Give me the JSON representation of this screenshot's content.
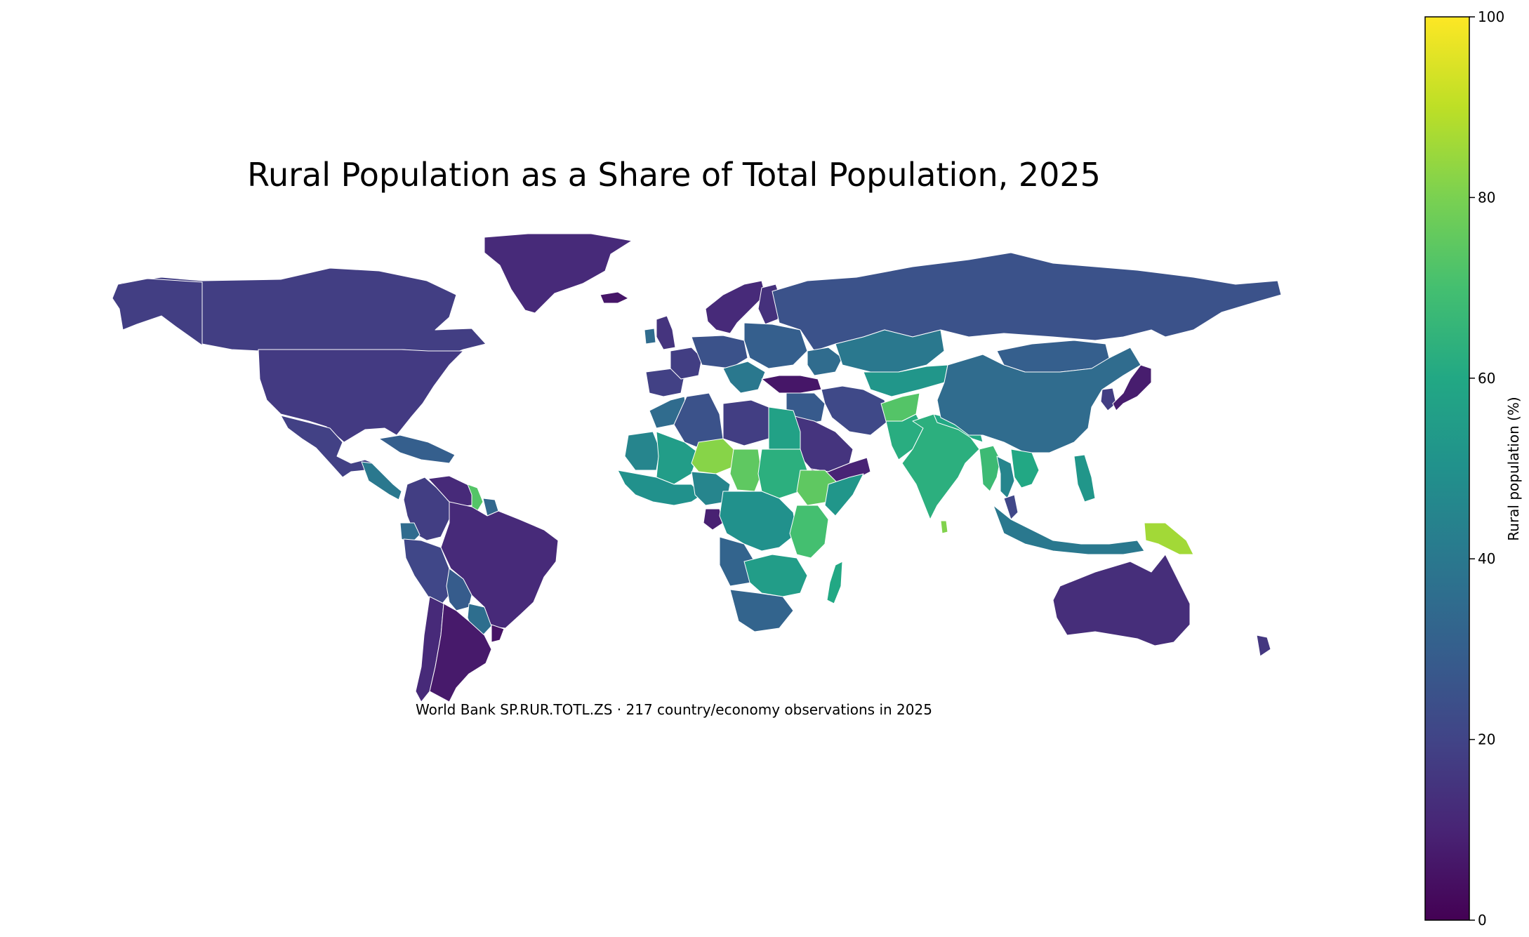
{
  "map": {
    "title": "Rural Population as a Share of Total Population, 2025",
    "subtitle": "World Bank SP.RUR.TOTL.ZS · 217 country/economy observations in 2025",
    "projection": "equirectangular world map",
    "colormap": "viridis",
    "colors": {
      "low": "#440154",
      "mid": "#21918c",
      "high": "#fde725",
      "background": "#ffffff",
      "border": "#ffffff"
    }
  },
  "colorbar": {
    "label": "Rural population (%)",
    "min": 0,
    "max": 100,
    "ticks": [
      "0",
      "20",
      "40",
      "60",
      "80",
      "100"
    ],
    "orientation": "vertical",
    "placement": "right"
  },
  "regions": [
    {
      "name": "Greenland",
      "value": 12
    },
    {
      "name": "Canada",
      "value": 18
    },
    {
      "name": "Alaska",
      "value": 18
    },
    {
      "name": "United States",
      "value": 17
    },
    {
      "name": "Mexico",
      "value": 19
    },
    {
      "name": "Central America",
      "value": 40
    },
    {
      "name": "Caribbean",
      "value": 30
    },
    {
      "name": "Colombia",
      "value": 18
    },
    {
      "name": "Venezuela",
      "value": 12
    },
    {
      "name": "Guyana",
      "value": 73
    },
    {
      "name": "Suriname",
      "value": 33
    },
    {
      "name": "Ecuador",
      "value": 35
    },
    {
      "name": "Peru",
      "value": 21
    },
    {
      "name": "Brazil",
      "value": 12
    },
    {
      "name": "Bolivia",
      "value": 29
    },
    {
      "name": "Paraguay",
      "value": 36
    },
    {
      "name": "Chile",
      "value": 12
    },
    {
      "name": "Argentina",
      "value": 7
    },
    {
      "name": "Uruguay",
      "value": 5
    },
    {
      "name": "Iceland",
      "value": 6
    },
    {
      "name": "United Kingdom",
      "value": 15
    },
    {
      "name": "Ireland",
      "value": 35
    },
    {
      "name": "Iberia",
      "value": 19
    },
    {
      "name": "France",
      "value": 18
    },
    {
      "name": "Central Europe",
      "value": 25
    },
    {
      "name": "Balkans",
      "value": 40
    },
    {
      "name": "Scandinavia",
      "value": 12
    },
    {
      "name": "Finland",
      "value": 14
    },
    {
      "name": "Eastern Europe",
      "value": 30
    },
    {
      "name": "Russia",
      "value": 25
    },
    {
      "name": "Turkey",
      "value": 6
    },
    {
      "name": "Caucasus",
      "value": 35
    },
    {
      "name": "Kazakhstan",
      "value": 40
    },
    {
      "name": "Central Asia",
      "value": 52
    },
    {
      "name": "Iran",
      "value": 22
    },
    {
      "name": "Iraq and Syria",
      "value": 28
    },
    {
      "name": "Saudi Arabia",
      "value": 15
    },
    {
      "name": "Arabian South",
      "value": 10
    },
    {
      "name": "Afghanistan",
      "value": 73
    },
    {
      "name": "Pakistan",
      "value": 62
    },
    {
      "name": "India",
      "value": 63
    },
    {
      "name": "Sri Lanka",
      "value": 81
    },
    {
      "name": "Nepal and Bangladesh",
      "value": 60
    },
    {
      "name": "Mongolia",
      "value": 30
    },
    {
      "name": "China",
      "value": 35
    },
    {
      "name": "Korea",
      "value": 18
    },
    {
      "name": "Japan",
      "value": 8
    },
    {
      "name": "Myanmar",
      "value": 68
    },
    {
      "name": "Thailand",
      "value": 45
    },
    {
      "name": "Vietnam and Cambodia",
      "value": 60
    },
    {
      "name": "Malaysia",
      "value": 21
    },
    {
      "name": "Philippines",
      "value": 52
    },
    {
      "name": "Indonesia",
      "value": 40
    },
    {
      "name": "Papua New Guinea",
      "value": 86
    },
    {
      "name": "Australia",
      "value": 13
    },
    {
      "name": "New Zealand",
      "value": 16
    },
    {
      "name": "Morocco",
      "value": 35
    },
    {
      "name": "Algeria",
      "value": 25
    },
    {
      "name": "Libya",
      "value": 18
    },
    {
      "name": "Egypt",
      "value": 57
    },
    {
      "name": "Mauritania",
      "value": 45
    },
    {
      "name": "Mali",
      "value": 55
    },
    {
      "name": "Niger",
      "value": 82
    },
    {
      "name": "Chad",
      "value": 75
    },
    {
      "name": "Sudan",
      "value": 63
    },
    {
      "name": "West Africa Coast",
      "value": 50
    },
    {
      "name": "Nigeria",
      "value": 45
    },
    {
      "name": "Ethiopia",
      "value": 75
    },
    {
      "name": "Somalia",
      "value": 52
    },
    {
      "name": "Gabon",
      "value": 9
    },
    {
      "name": "Central Africa",
      "value": 50
    },
    {
      "name": "East Africa",
      "value": 70
    },
    {
      "name": "Angola",
      "value": 32
    },
    {
      "name": "Southern Africa",
      "value": 55
    },
    {
      "name": "South Africa",
      "value": 32
    },
    {
      "name": "Madagascar",
      "value": 60
    }
  ]
}
